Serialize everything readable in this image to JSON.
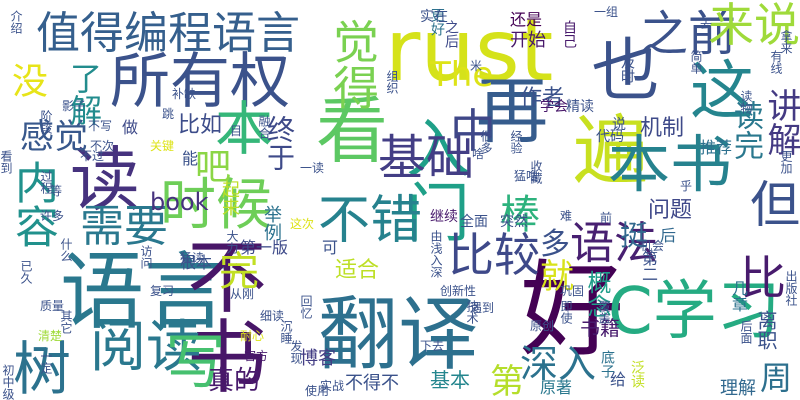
{
  "words": [
    {
      "t": "rust",
      "c": "#d5e21a"
    },
    {
      "t": "翻译",
      "c": "#2d708e"
    },
    {
      "t": "语言",
      "c": "#2a788e"
    },
    {
      "t": "好",
      "c": "#440154"
    },
    {
      "t": "看",
      "c": "#5cc863"
    },
    {
      "t": "读",
      "c": "#46327e"
    },
    {
      "t": "入门",
      "c": "#1fa088"
    },
    {
      "t": "再",
      "c": "#365c8d"
    },
    {
      "t": "遍",
      "c": "#c8e020"
    },
    {
      "t": "不书",
      "c": "#481668"
    },
    {
      "t": "所有权",
      "c": "#3b528b"
    },
    {
      "t": "值得编程语言",
      "c": "#355f8d"
    },
    {
      "t": "也",
      "c": "#3b528b"
    },
    {
      "t": "这",
      "c": "#25858e"
    },
    {
      "t": "本书",
      "c": "#26828e"
    },
    {
      "t": "时候",
      "c": "#6ece58"
    },
    {
      "t": "C学习",
      "c": "#25ab82"
    },
    {
      "t": "树",
      "c": "#2c728e"
    },
    {
      "t": "阅读",
      "c": "#2a788e"
    },
    {
      "t": "写",
      "c": "#46c06f"
    },
    {
      "t": "比较",
      "c": "#3e4989"
    },
    {
      "t": "语法",
      "c": "#482071"
    },
    {
      "t": "不错",
      "c": "#26828e"
    },
    {
      "t": "本",
      "c": "#35b779"
    },
    {
      "t": "基础",
      "c": "#433e85"
    },
    {
      "t": "比",
      "c": "#481b6d"
    },
    {
      "t": "之前",
      "c": "#3b528b"
    },
    {
      "t": "来说",
      "c": "#9fda3a"
    },
    {
      "t": "中",
      "c": "#3f4788"
    },
    {
      "t": "觉得",
      "c": "#7ad151"
    },
    {
      "t": "内容",
      "c": "#21918c"
    },
    {
      "t": "需要",
      "c": "#2a788e"
    },
    {
      "t": "感觉",
      "c": "#38588c"
    },
    {
      "t": "了解",
      "c": "#228c8d"
    },
    {
      "t": "没",
      "c": "#e7e419"
    },
    {
      "t": "但",
      "c": "#3b528b"
    },
    {
      "t": "讲解",
      "c": "#443a83"
    },
    {
      "t": "读完",
      "c": "#2a788e"
    },
    {
      "t": "棒",
      "c": "#2db27d"
    },
    {
      "t": "The",
      "c": "#dde318"
    },
    {
      "t": "终于",
      "c": "#3e4a89"
    },
    {
      "t": "完",
      "c": "#c2df23"
    },
    {
      "t": "吧",
      "c": "#8bd646"
    },
    {
      "t": "就",
      "c": "#d8e219"
    },
    {
      "t": "多",
      "c": "#3b528b"
    },
    {
      "t": "挺",
      "c": "#31688e"
    },
    {
      "t": "book",
      "c": "#46327e"
    },
    {
      "t": "深入",
      "c": "#2c728e"
    },
    {
      "t": "第",
      "c": "#b5de2b"
    },
    {
      "t": "真的",
      "c": "#481a6c"
    },
    {
      "t": "周",
      "c": "#2d708e"
    },
    {
      "t": "适合",
      "c": "#bddf26"
    },
    {
      "t": "比如",
      "c": "#3d4d8a"
    },
    {
      "t": "问题",
      "c": "#3f4889"
    },
    {
      "t": "概念",
      "c": "#1f9e89"
    },
    {
      "t": "书籍",
      "c": "#481b6d"
    },
    {
      "t": "基本",
      "c": "#24868e"
    },
    {
      "t": "作者",
      "c": "#3b528b"
    },
    {
      "t": "机制",
      "c": "#3e4a89"
    },
    {
      "t": "推荐",
      "c": "#2d708e"
    },
    {
      "t": "离职",
      "c": "#3b528b"
    },
    {
      "t": "理解",
      "c": "#31688e"
    },
    {
      "t": "几章",
      "c": "#2c728e"
    },
    {
      "t": "第一版",
      "c": "#3e4a89"
    },
    {
      "t": "博客",
      "c": "#433d84"
    },
    {
      "t": "举例",
      "c": "#2c728e"
    },
    {
      "t": "不得不",
      "c": "#3b528b"
    },
    {
      "t": "可",
      "c": "#3b528b"
    },
    {
      "t": "开始",
      "c": "#48186a"
    },
    {
      "t": "还是",
      "c": "#440154"
    },
    {
      "t": "原著",
      "c": "#2a788e"
    },
    {
      "t": "给",
      "c": "#3b528b"
    },
    {
      "t": "做",
      "c": "#3e4a89"
    },
    {
      "t": "能",
      "c": "#3b528b"
    },
    {
      "t": "起来",
      "c": "#bddf26"
    },
    {
      "t": "根本",
      "c": "#3b528b"
    },
    {
      "t": "后",
      "c": "#31688e"
    },
    {
      "t": "第二",
      "c": "#3b528b"
    },
    {
      "t": "泛读",
      "c": "#c2df23"
    },
    {
      "t": "底子",
      "c": "#2c728e"
    },
    {
      "t": "继续",
      "c": "#481a6c"
    },
    {
      "t": "全面",
      "c": "#3b528b"
    },
    {
      "t": "突然",
      "c": "#3b528b"
    },
    {
      "t": "精读",
      "c": "#3b528b"
    },
    {
      "t": "代码",
      "c": "#3b528b"
    },
    {
      "t": "说",
      "c": "#3b528b"
    },
    {
      "t": "学会",
      "c": "#48186a"
    },
    {
      "t": "自己",
      "c": "#481a6c"
    },
    {
      "t": "更好",
      "c": "#2c728e"
    },
    {
      "t": "之后",
      "c": "#3e4a89"
    },
    {
      "t": "实在",
      "c": "#3b528b"
    },
    {
      "t": "及时",
      "c": "#3b528b"
    },
    {
      "t": "简单",
      "c": "#3b528b"
    },
    {
      "t": "介绍",
      "c": "#3b528b"
    },
    {
      "t": "阶段",
      "c": "#3b528b"
    },
    {
      "t": "官方",
      "c": "#481a6c"
    },
    {
      "t": "实战",
      "c": "#3b528b"
    },
    {
      "t": "发现",
      "c": "#3b528b"
    },
    {
      "t": "细读",
      "c": "#3b528b"
    },
    {
      "t": "从刚",
      "c": "#3b528b"
    },
    {
      "t": "回忆",
      "c": "#3b528b"
    },
    {
      "t": "更加",
      "c": "#3b528b"
    },
    {
      "t": "机会",
      "c": "#3b528b"
    },
    {
      "t": "巩固",
      "c": "#3b528b"
    },
    {
      "t": "遇到",
      "c": "#3b528b"
    },
    {
      "t": "创新性",
      "c": "#3b528b"
    },
    {
      "t": "原创",
      "c": "#3b528b"
    },
    {
      "t": "技术",
      "c": "#3b528b"
    },
    {
      "t": "复习",
      "c": "#3b528b"
    },
    {
      "t": "访问",
      "c": "#3b528b"
    },
    {
      "t": "质量",
      "c": "#3b528b"
    },
    {
      "t": "清楚",
      "c": "#9fda3a"
    },
    {
      "t": "一定",
      "c": "#3b528b"
    },
    {
      "t": "其它",
      "c": "#3b528b"
    },
    {
      "t": "耐心",
      "c": "#dde318"
    },
    {
      "t": "使用",
      "c": "#3b528b"
    },
    {
      "t": "猛读",
      "c": "#3b528b"
    },
    {
      "t": "这次",
      "c": "#dde318"
    },
    {
      "t": "大力",
      "c": "#3b528b"
    },
    {
      "t": "不过",
      "c": "#3b528b"
    },
    {
      "t": "过程",
      "c": "#3b528b"
    },
    {
      "t": "很多",
      "c": "#3b528b"
    },
    {
      "t": "许多",
      "c": "#3b528b"
    },
    {
      "t": "看到",
      "c": "#3b528b"
    },
    {
      "t": "已久",
      "c": "#3b528b"
    },
    {
      "t": "什么",
      "c": "#3b528b"
    },
    {
      "t": "沉睡",
      "c": "#3b528b"
    },
    {
      "t": "融合",
      "c": "#3b528b"
    },
    {
      "t": "猛噜",
      "c": "#3b528b"
    },
    {
      "t": "经验",
      "c": "#3b528b"
    },
    {
      "t": "收藏",
      "c": "#3b528b"
    },
    {
      "t": "补缺",
      "c": "#3b528b"
    },
    {
      "t": "跳",
      "c": "#3b528b"
    },
    {
      "t": "关键",
      "c": "#dde318"
    },
    {
      "t": "不次",
      "c": "#3b528b"
    },
    {
      "t": "不写",
      "c": "#3b528b"
    },
    {
      "t": "组织",
      "c": "#3b528b"
    },
    {
      "t": "覆盖",
      "c": "#3b528b"
    },
    {
      "t": "拿来",
      "c": "#3b528b"
    },
    {
      "t": "有线",
      "c": "#3b528b"
    },
    {
      "t": "出版社",
      "c": "#3b528b"
    },
    {
      "t": "初中级",
      "c": "#3b528b"
    },
    {
      "t": "读物",
      "c": "#3b528b"
    },
    {
      "t": "由浅入深",
      "c": "#3b528b"
    },
    {
      "t": "前",
      "c": "#3b528b"
    },
    {
      "t": "去",
      "c": "#3b528b"
    },
    {
      "t": "乎",
      "c": "#3b528b"
    },
    {
      "t": "难",
      "c": "#3b528b"
    },
    {
      "t": "一读",
      "c": "#3b528b"
    },
    {
      "t": "等",
      "c": "#3b528b"
    },
    {
      "t": "下去",
      "c": "#3b528b"
    },
    {
      "t": "即使",
      "c": "#3b528b"
    },
    {
      "t": "后面",
      "c": "#3b528b"
    },
    {
      "t": "一组",
      "c": "#3b528b"
    },
    {
      "t": "影子",
      "c": "#3b528b"
    },
    {
      "t": "米",
      "c": "#3b528b"
    },
    {
      "t": "目",
      "c": "#3b528b"
    },
    {
      "t": "啥",
      "c": "#3b528b"
    }
  ]
}
